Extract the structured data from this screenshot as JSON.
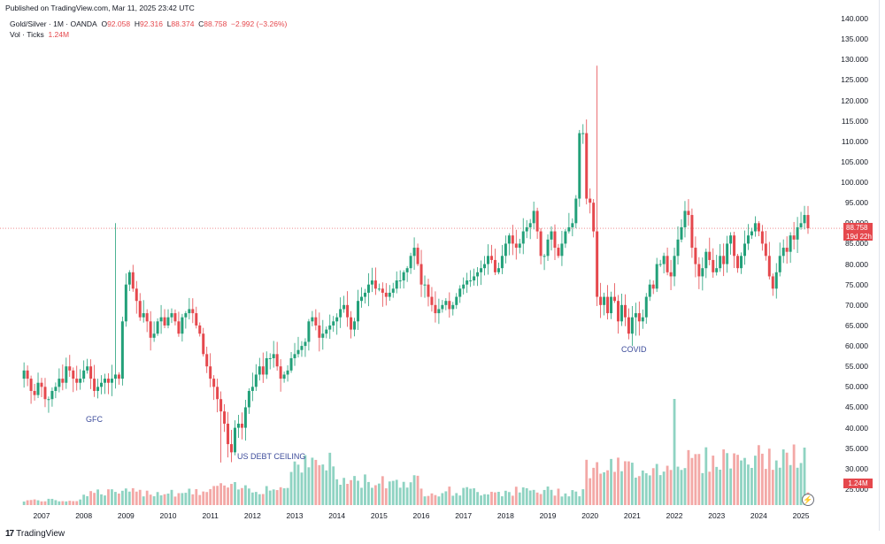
{
  "header": {
    "published": "Published on TradingView.com, Mar 11, 2025 23:42 UTC",
    "symbol": "Gold/Silver · 1M · OANDA",
    "open_label": "O",
    "open": "92.058",
    "high_label": "H",
    "high": "92.316",
    "low_label": "L",
    "low": "88.374",
    "close_label": "C",
    "close": "88.758",
    "change": "−2.992 (−3.26%)",
    "vol_label": "Vol · Ticks",
    "vol_value": "1.24M"
  },
  "price_tag": {
    "price": "88.758",
    "countdown": "19d 22h"
  },
  "vol_tag": "1.24M",
  "annotations": {
    "gfc": "GFC",
    "debt": "US DEBT CEILING",
    "covid": "COVID"
  },
  "footer": {
    "brand": "TradingView",
    "logo_mark": "17"
  },
  "colors": {
    "up": "#22a079",
    "down": "#e5484d",
    "vol_up": "#8fd3c2",
    "vol_down": "#f3a8a6",
    "last_line": "#e5484d"
  },
  "chart_data": {
    "type": "candlestick",
    "title": "Gold/Silver · 1M · OANDA",
    "xlabel": "",
    "ylabel": "",
    "ylim": [
      25,
      140
    ],
    "y_ticks": [
      "140.000",
      "135.000",
      "130.000",
      "125.000",
      "120.000",
      "115.000",
      "110.000",
      "105.000",
      "100.000",
      "95.000",
      "90.000",
      "85.000",
      "80.000",
      "75.000",
      "70.000",
      "65.000",
      "60.000",
      "55.000",
      "50.000",
      "45.000",
      "40.000",
      "35.000",
      "30.000",
      "25.000"
    ],
    "x_ticks": [
      "2007",
      "2008",
      "2009",
      "2010",
      "2011",
      "2012",
      "2013",
      "2014",
      "2015",
      "2016",
      "2017",
      "2018",
      "2019",
      "2020",
      "2021",
      "2022",
      "2023",
      "2024",
      "2025"
    ],
    "last_price": 88.758,
    "key_points": [
      {
        "label": "GFC",
        "date": "2008-10",
        "high": 90.0
      },
      {
        "label": "US DEBT CEILING",
        "date": "2011-04",
        "low": 31.5
      },
      {
        "label": "COVID high",
        "date": "2020-03",
        "high": 128.5
      },
      {
        "label": "COVID low",
        "date": "2021-02",
        "low": 62.5
      }
    ],
    "closes": [
      54,
      52,
      49,
      48,
      51,
      50,
      47,
      47,
      49,
      50,
      52,
      51,
      55,
      54,
      52,
      51,
      52,
      54,
      55,
      52,
      49,
      50,
      51,
      52,
      51,
      52,
      53,
      52,
      66,
      75,
      78,
      74,
      71,
      67,
      68,
      66,
      62,
      63,
      66,
      67,
      65,
      67,
      68,
      66,
      63,
      67,
      68,
      69,
      68,
      65,
      63,
      58,
      55,
      52,
      50,
      47,
      44,
      41,
      36,
      34,
      40,
      41,
      40,
      45,
      49,
      50,
      53,
      55,
      53,
      57,
      57,
      58,
      55,
      52,
      53,
      54,
      57,
      58,
      59,
      60,
      61,
      66,
      67,
      65,
      62,
      63,
      64,
      65,
      66,
      67,
      69,
      70,
      67,
      64,
      66,
      71,
      72,
      73,
      75,
      76,
      74,
      74,
      73,
      72,
      73,
      74,
      76,
      76,
      78,
      79,
      82,
      84,
      80,
      75,
      75,
      72,
      70,
      68,
      69,
      70,
      71,
      69,
      70,
      72,
      74,
      75,
      76,
      76,
      77,
      78,
      79,
      80,
      82,
      81,
      78,
      79,
      82,
      85,
      87,
      85,
      84,
      85,
      88,
      89,
      90,
      93,
      88,
      82,
      82,
      86,
      88,
      84,
      82,
      85,
      88,
      89,
      90,
      96,
      112,
      112,
      96,
      95,
      88,
      72,
      70,
      72,
      68,
      72,
      71,
      66,
      70,
      67,
      63,
      67,
      68,
      66,
      67,
      72,
      75,
      74,
      80,
      80,
      82,
      78,
      77,
      82,
      86,
      89,
      93,
      92,
      84,
      80,
      77,
      79,
      83,
      81,
      78,
      79,
      82,
      80,
      85,
      87,
      82,
      79,
      82,
      85,
      87,
      88,
      90,
      88,
      85,
      82,
      77,
      74,
      78,
      82,
      84,
      83,
      87,
      86,
      89,
      90,
      92,
      88.758
    ],
    "volume_note": "Vol · Ticks, last 1.24M"
  }
}
